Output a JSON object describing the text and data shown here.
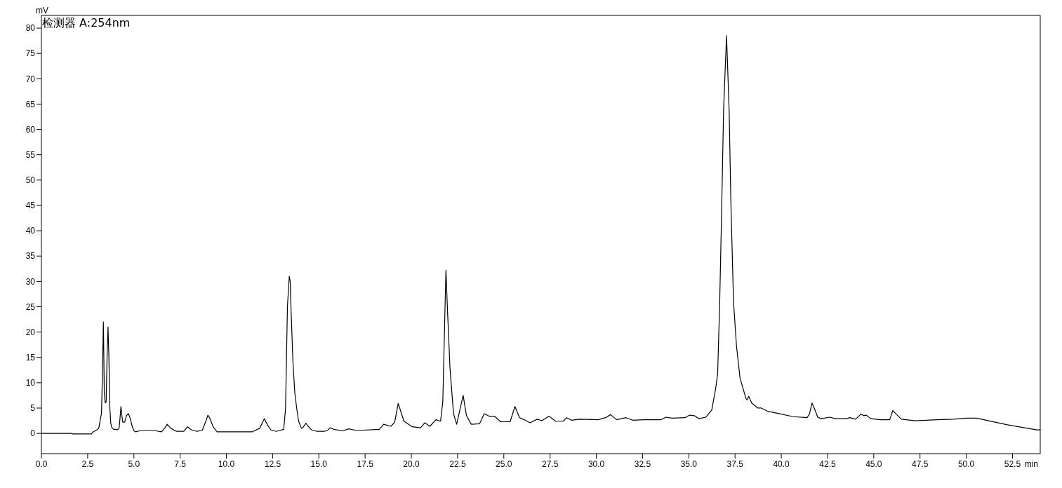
{
  "chart_data": {
    "type": "line",
    "title": "检测器 A:254nm",
    "xlabel": "min",
    "ylabel": "mV",
    "xlim": [
      0,
      54
    ],
    "ylim": [
      -4,
      82.5
    ],
    "xticks": [
      {
        "value": 0,
        "label": "0.0"
      },
      {
        "value": 2.5,
        "label": "2.5"
      },
      {
        "value": 5,
        "label": "5.0"
      },
      {
        "value": 7.5,
        "label": "7.5"
      },
      {
        "value": 10,
        "label": "10.0"
      },
      {
        "value": 12.5,
        "label": "12.5"
      },
      {
        "value": 15,
        "label": "15.0"
      },
      {
        "value": 17.5,
        "label": "17.5"
      },
      {
        "value": 20,
        "label": "20.0"
      },
      {
        "value": 22.5,
        "label": "22.5"
      },
      {
        "value": 25,
        "label": "25.0"
      },
      {
        "value": 27.5,
        "label": "27.5"
      },
      {
        "value": 30,
        "label": "30.0"
      },
      {
        "value": 32.5,
        "label": "32.5"
      },
      {
        "value": 35,
        "label": "35.0"
      },
      {
        "value": 37.5,
        "label": "37.5"
      },
      {
        "value": 40,
        "label": "40.0"
      },
      {
        "value": 42.5,
        "label": "42.5"
      },
      {
        "value": 45,
        "label": "45.0"
      },
      {
        "value": 47.5,
        "label": "47.5"
      },
      {
        "value": 50,
        "label": "50.0"
      },
      {
        "value": 52.5,
        "label": "52.5"
      }
    ],
    "yticks": [
      0,
      5,
      10,
      15,
      20,
      25,
      30,
      35,
      40,
      45,
      50,
      55,
      60,
      65,
      70,
      75,
      80
    ],
    "grid": false,
    "marker": "none",
    "line_style": "solid",
    "series": [
      {
        "color": "#000000",
        "x": [
          0,
          1.6,
          1.7,
          2.7,
          2.8,
          3.0,
          3.1,
          3.2,
          3.25,
          3.3,
          3.35,
          3.4,
          3.45,
          3.5,
          3.55,
          3.6,
          3.65,
          3.7,
          3.75,
          3.8,
          3.9,
          4.0,
          4.1,
          4.2,
          4.25,
          4.3,
          4.35,
          4.4,
          4.5,
          4.6,
          4.7,
          4.8,
          4.9,
          5.0,
          5.1,
          5.3,
          5.6,
          6.0,
          6.2,
          6.5,
          6.7,
          6.8,
          7.0,
          7.3,
          7.7,
          7.9,
          8.1,
          8.4,
          8.7,
          8.9,
          9.0,
          9.1,
          9.3,
          9.5,
          10.5,
          11.4,
          11.5,
          11.8,
          12.0,
          12.05,
          12.2,
          12.4,
          12.7,
          12.9,
          13.1,
          13.2,
          13.3,
          13.4,
          13.45,
          13.5,
          13.6,
          13.7,
          13.8,
          13.9,
          14.05,
          14.15,
          14.3,
          14.4,
          14.6,
          14.9,
          15.3,
          15.5,
          15.6,
          15.8,
          16.3,
          16.6,
          17.0,
          17.24,
          18.27,
          18.5,
          18.9,
          19.1,
          19.29,
          19.6,
          20.05,
          20.5,
          20.73,
          21.0,
          21.33,
          21.58,
          21.7,
          21.8,
          21.87,
          21.96,
          22.09,
          22.28,
          22.45,
          22.8,
          22.98,
          23.24,
          23.69,
          23.94,
          24.2,
          24.49,
          24.83,
          25.34,
          25.6,
          25.85,
          26.1,
          26.42,
          26.8,
          27.06,
          27.44,
          27.8,
          28.2,
          28.4,
          28.66,
          29.1,
          30.1,
          30.5,
          30.77,
          31.1,
          31.6,
          31.97,
          32.55,
          33.5,
          33.76,
          34.1,
          34.8,
          35.04,
          35.3,
          35.55,
          35.92,
          36.24,
          36.45,
          36.56,
          36.67,
          36.78,
          36.88,
          37.04,
          37.18,
          37.28,
          37.42,
          37.58,
          37.77,
          38.09,
          38.15,
          38.24,
          38.4,
          38.73,
          38.92,
          39.24,
          39.87,
          40.64,
          41.4,
          41.53,
          41.66,
          41.78,
          41.97,
          42.17,
          42.61,
          42.93,
          43.5,
          43.72,
          44.01,
          44.31,
          44.46,
          44.59,
          44.84,
          45.35,
          45.86,
          46.03,
          46.24,
          46.5,
          47.26,
          48.41,
          49.3,
          50.0,
          50.57,
          51.08,
          52.23,
          53.82,
          54
        ],
        "values": [
          0,
          0,
          -0.1,
          -0.1,
          0.3,
          0.7,
          1.0,
          3,
          4,
          12,
          22,
          8,
          6,
          6.2,
          15,
          21,
          15,
          5,
          2,
          1.2,
          0.8,
          0.8,
          0.7,
          1.0,
          3,
          5.3,
          3.5,
          2.2,
          2.2,
          3.5,
          3.9,
          3.0,
          1.5,
          0.5,
          0.3,
          0.5,
          0.6,
          0.6,
          0.5,
          0.3,
          1.2,
          1.8,
          1.0,
          0.4,
          0.4,
          1.3,
          0.7,
          0.4,
          0.6,
          2.5,
          3.6,
          3.0,
          1.2,
          0.3,
          0.3,
          0.3,
          0.5,
          1,
          2.5,
          2.9,
          1.8,
          0.7,
          0.4,
          0.6,
          0.8,
          5,
          25,
          31,
          30,
          24,
          14,
          8,
          5,
          2.5,
          1,
          1.2,
          2,
          1.5,
          0.7,
          0.4,
          0.4,
          0.7,
          1.1,
          0.8,
          0.5,
          0.9,
          0.6,
          0.6,
          0.8,
          1.8,
          1.4,
          2.2,
          5.9,
          2.4,
          1.3,
          1.1,
          2.1,
          1.4,
          2.7,
          2.4,
          6.2,
          21.6,
          32.2,
          23.8,
          12.8,
          3.9,
          1.8,
          7.5,
          3.5,
          1.8,
          1.9,
          3.9,
          3.4,
          3.4,
          2.3,
          2.3,
          5.3,
          3.1,
          2.7,
          2.1,
          2.8,
          2.5,
          3.4,
          2.4,
          2.4,
          3.1,
          2.6,
          2.8,
          2.7,
          3.1,
          3.7,
          2.7,
          3.1,
          2.6,
          2.7,
          2.7,
          3.2,
          3.0,
          3.1,
          3.6,
          3.5,
          2.9,
          3.2,
          4.6,
          8.8,
          11.8,
          25.8,
          44.8,
          63.8,
          78.5,
          63.8,
          44.8,
          25.8,
          17.2,
          10.9,
          6.9,
          6.6,
          7.3,
          6.0,
          5.0,
          5.0,
          4.4,
          3.9,
          3.3,
          3.1,
          3.9,
          6.0,
          5.0,
          3.2,
          2.9,
          3.2,
          2.9,
          2.9,
          3.1,
          2.8,
          3.8,
          3.5,
          3.6,
          2.9,
          2.7,
          2.7,
          4.5,
          3.7,
          2.8,
          2.5,
          2.7,
          2.8,
          3.0,
          3.0,
          2.6,
          1.7,
          0.7,
          0.7
        ]
      }
    ]
  }
}
